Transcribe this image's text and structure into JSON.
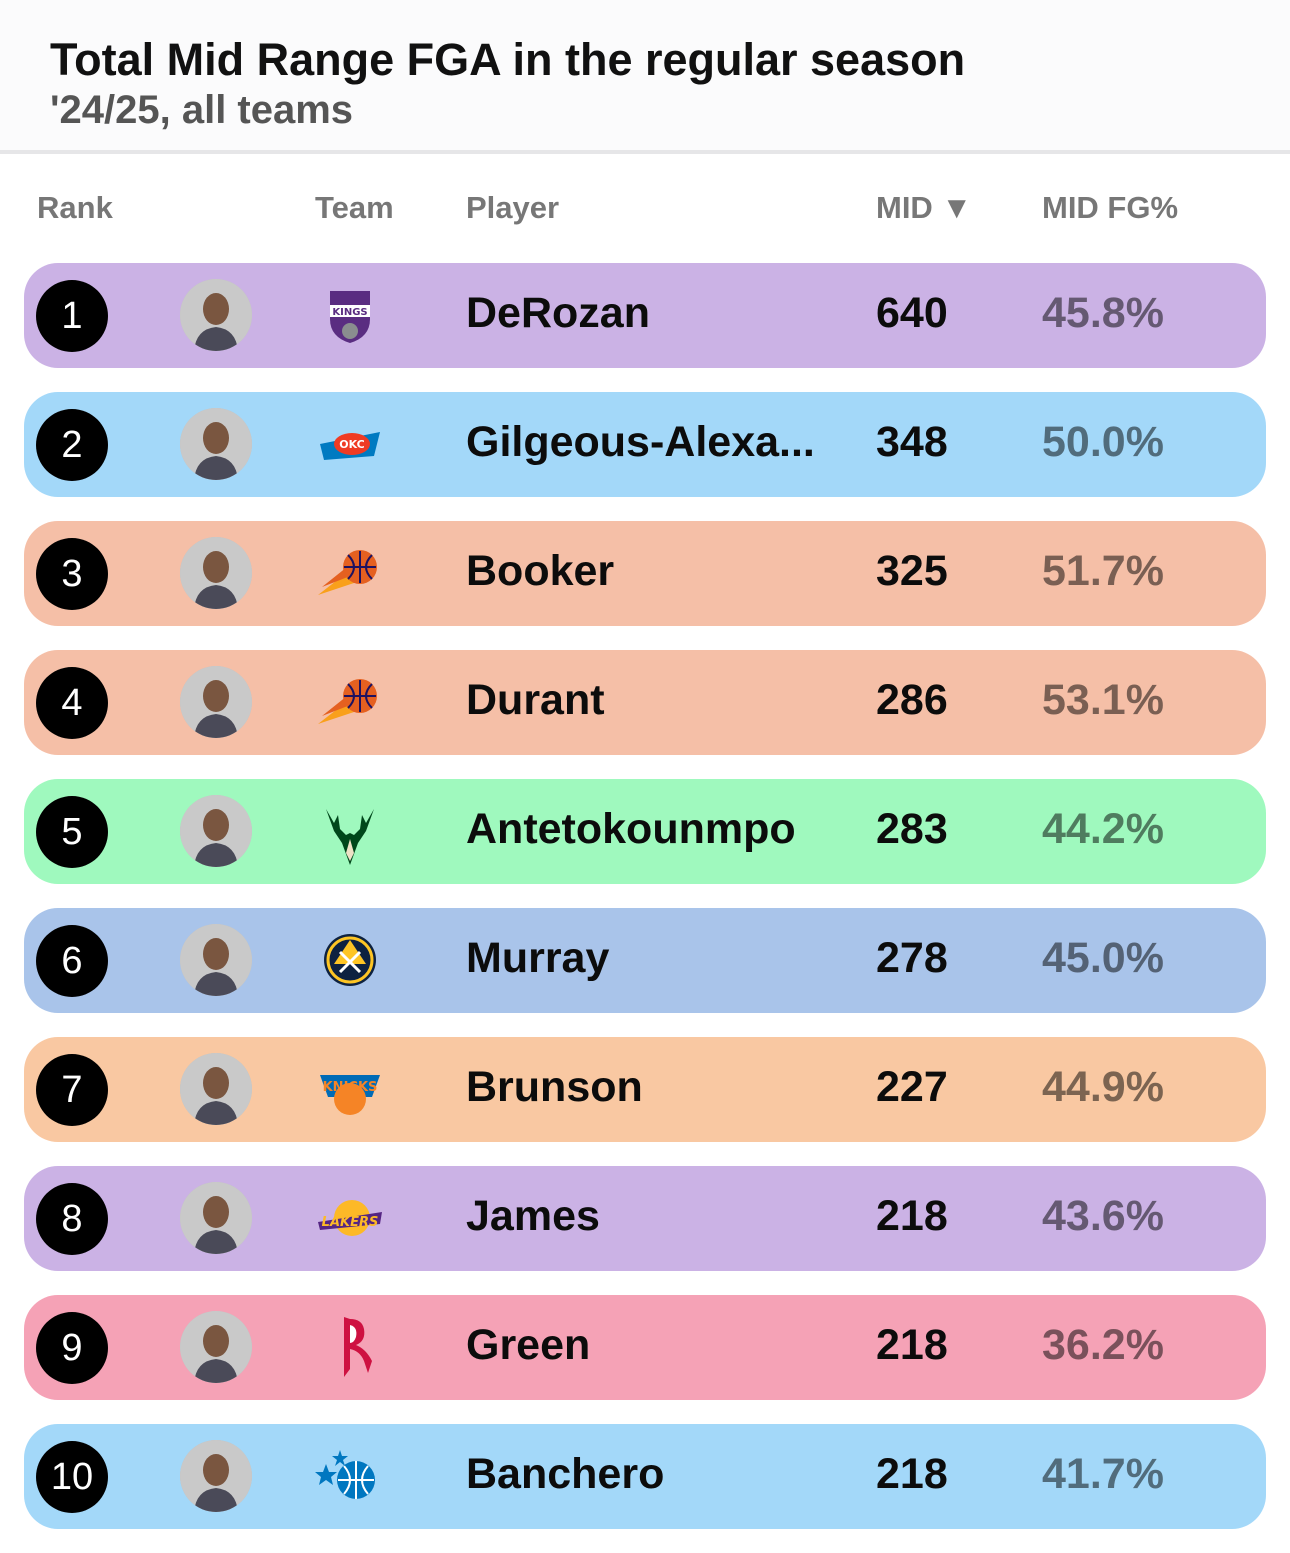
{
  "header": {
    "title": "Total Mid Range FGA in the regular season",
    "subtitle": "'24/25, all teams"
  },
  "columns": {
    "rank": "Rank",
    "team": "Team",
    "player": "Player",
    "mid": "MID ▼",
    "mid_fg": "MID FG%"
  },
  "rows": [
    {
      "rank": "1",
      "player": "DeRozan",
      "team_logo": "kings-logo-icon",
      "mid": "640",
      "fg": "45.8%",
      "color": "#cbb2e5"
    },
    {
      "rank": "2",
      "player": "Gilgeous-Alexa...",
      "team_logo": "thunder-logo-icon",
      "mid": "348",
      "fg": "50.0%",
      "color": "#a3d8f9"
    },
    {
      "rank": "3",
      "player": "Booker",
      "team_logo": "suns-logo-icon",
      "mid": "325",
      "fg": "51.7%",
      "color": "#f5bfa7"
    },
    {
      "rank": "4",
      "player": "Durant",
      "team_logo": "suns-logo-icon",
      "mid": "286",
      "fg": "53.1%",
      "color": "#f5bfa7"
    },
    {
      "rank": "5",
      "player": "Antetokounmpo",
      "team_logo": "bucks-logo-icon",
      "mid": "283",
      "fg": "44.2%",
      "color": "#9ff9be"
    },
    {
      "rank": "6",
      "player": "Murray",
      "team_logo": "nuggets-logo-icon",
      "mid": "278",
      "fg": "45.0%",
      "color": "#a9c4ea"
    },
    {
      "rank": "7",
      "player": "Brunson",
      "team_logo": "knicks-logo-icon",
      "mid": "227",
      "fg": "44.9%",
      "color": "#f9c8a2"
    },
    {
      "rank": "8",
      "player": "James",
      "team_logo": "lakers-logo-icon",
      "mid": "218",
      "fg": "43.6%",
      "color": "#cbb2e5"
    },
    {
      "rank": "9",
      "player": "Green",
      "team_logo": "rockets-logo-icon",
      "mid": "218",
      "fg": "36.2%",
      "color": "#f5a2b6"
    },
    {
      "rank": "10",
      "player": "Banchero",
      "team_logo": "magic-logo-icon",
      "mid": "218",
      "fg": "41.7%",
      "color": "#a3d8f9"
    }
  ]
}
